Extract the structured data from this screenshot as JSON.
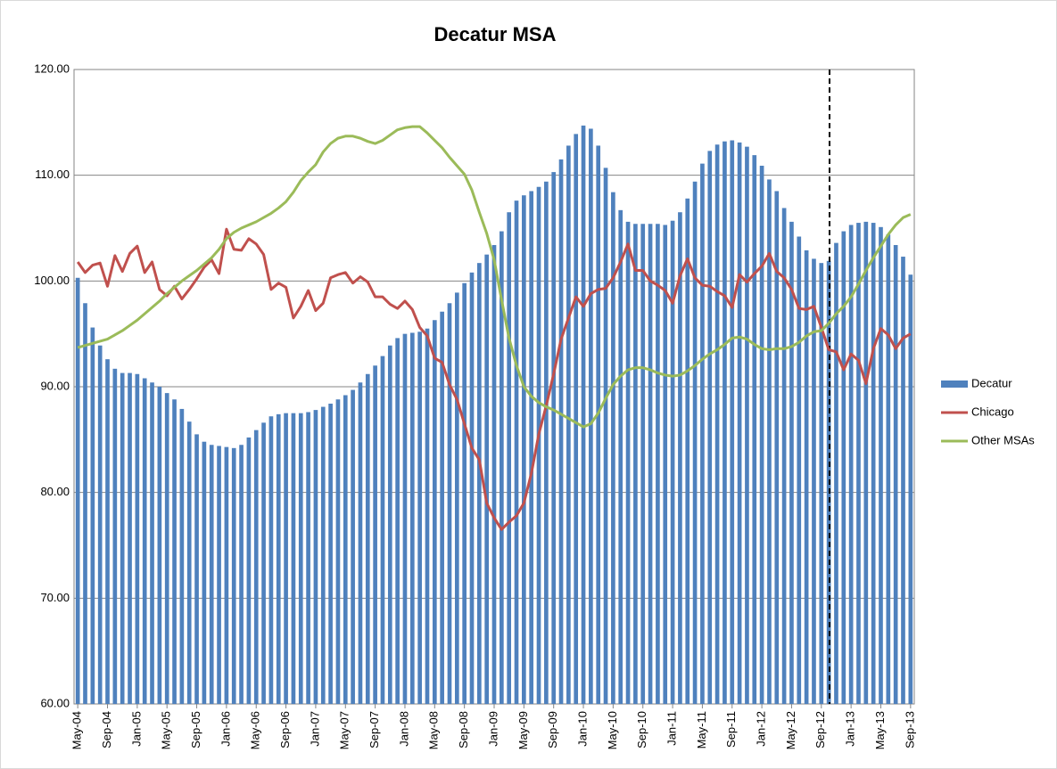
{
  "chart_data": {
    "type": "bar-line",
    "title": "Decatur MSA",
    "categories": [
      "May-04",
      null,
      null,
      null,
      "Sep-04",
      null,
      null,
      null,
      "Jan-05",
      null,
      null,
      null,
      "May-05",
      null,
      null,
      null,
      "Sep-05",
      null,
      null,
      null,
      "Jan-06",
      null,
      null,
      null,
      "May-06",
      null,
      null,
      null,
      "Sep-06",
      null,
      null,
      null,
      "Jan-07",
      null,
      null,
      null,
      "May-07",
      null,
      null,
      null,
      "Sep-07",
      null,
      null,
      null,
      "Jan-08",
      null,
      null,
      null,
      "May-08",
      null,
      null,
      null,
      "Sep-08",
      null,
      null,
      null,
      "Jan-09",
      null,
      null,
      null,
      "May-09",
      null,
      null,
      null,
      "Sep-09",
      null,
      null,
      null,
      "Jan-10",
      null,
      null,
      null,
      "May-10",
      null,
      null,
      null,
      "Sep-10",
      null,
      null,
      null,
      "Jan-11",
      null,
      null,
      null,
      "May-11",
      null,
      null,
      null,
      "Sep-11",
      null,
      null,
      null,
      "Jan-12",
      null,
      null,
      null,
      "May-12",
      null,
      null,
      null,
      "Sep-12",
      null,
      null,
      null,
      "Jan-13",
      null,
      null,
      null,
      "May-13",
      null,
      null,
      null,
      "Sep-13"
    ],
    "series": [
      {
        "name": "Decatur",
        "kind": "bar",
        "color": "#4f81bd",
        "values": [
          100.3,
          97.9,
          95.6,
          93.9,
          92.6,
          91.7,
          91.3,
          91.3,
          91.2,
          90.8,
          90.4,
          90.0,
          89.4,
          88.8,
          87.9,
          86.7,
          85.5,
          84.8,
          84.5,
          84.4,
          84.3,
          84.2,
          84.5,
          85.2,
          85.9,
          86.6,
          87.2,
          87.4,
          87.5,
          87.5,
          87.5,
          87.6,
          87.8,
          88.1,
          88.4,
          88.8,
          89.2,
          89.7,
          90.4,
          91.2,
          92.0,
          92.9,
          93.9,
          94.6,
          95.0,
          95.1,
          95.2,
          95.5,
          96.3,
          97.1,
          97.9,
          98.9,
          99.8,
          100.8,
          101.7,
          102.5,
          103.4,
          104.7,
          106.5,
          107.6,
          108.1,
          108.5,
          108.9,
          109.4,
          110.3,
          111.5,
          112.8,
          113.9,
          114.7,
          114.4,
          112.8,
          110.7,
          108.4,
          106.7,
          105.6,
          105.4,
          105.4,
          105.4,
          105.4,
          105.3,
          105.7,
          106.5,
          107.8,
          109.4,
          111.1,
          112.3,
          112.9,
          113.2,
          113.3,
          113.1,
          112.7,
          111.9,
          110.9,
          109.6,
          108.5,
          106.9,
          105.6,
          104.2,
          102.9,
          102.1,
          101.7,
          101.9,
          103.6,
          104.7,
          105.3,
          105.5,
          105.6,
          105.5,
          105.1,
          104.4,
          103.4,
          102.3,
          100.6
        ]
      },
      {
        "name": "Chicago",
        "kind": "line",
        "color": "#c0504d",
        "values": [
          101.8,
          100.8,
          101.5,
          101.7,
          99.5,
          102.4,
          100.9,
          102.6,
          103.3,
          100.8,
          101.8,
          99.2,
          98.6,
          99.5,
          98.3,
          99.2,
          100.2,
          101.3,
          102.0,
          100.7,
          104.9,
          103.0,
          102.9,
          104.0,
          103.5,
          102.5,
          99.2,
          99.8,
          99.4,
          96.5,
          97.6,
          99.1,
          97.2,
          97.9,
          100.3,
          100.6,
          100.8,
          99.8,
          100.4,
          99.9,
          98.5,
          98.5,
          97.8,
          97.4,
          98.1,
          97.3,
          95.6,
          94.8,
          92.7,
          92.3,
          90.2,
          88.8,
          86.5,
          84.2,
          83.1,
          79.0,
          77.6,
          76.5,
          77.2,
          77.8,
          79.0,
          81.8,
          85.5,
          88.2,
          91.2,
          94.5,
          96.5,
          98.5,
          97.6,
          98.8,
          99.2,
          99.3,
          100.3,
          101.8,
          103.5,
          101.0,
          101.0,
          100.0,
          99.6,
          99.1,
          97.9,
          100.5,
          102.1,
          100.3,
          99.6,
          99.5,
          99.0,
          98.6,
          97.5,
          100.6,
          99.9,
          100.7,
          101.4,
          102.6,
          100.9,
          100.3,
          99.2,
          97.4,
          97.3,
          97.6,
          95.6,
          93.5,
          93.3,
          91.6,
          93.1,
          92.5,
          90.3,
          93.6,
          95.5,
          94.9,
          93.6,
          94.6,
          95.0
        ]
      },
      {
        "name": "Other MSAs",
        "kind": "line",
        "color": "#9bbb59",
        "values": [
          93.7,
          93.9,
          94.1,
          94.3,
          94.5,
          94.9,
          95.3,
          95.8,
          96.3,
          96.9,
          97.5,
          98.1,
          98.8,
          99.4,
          100.0,
          100.5,
          101.0,
          101.6,
          102.2,
          103.0,
          104.0,
          104.6,
          105.0,
          105.3,
          105.6,
          106.0,
          106.4,
          106.9,
          107.5,
          108.4,
          109.5,
          110.3,
          111.0,
          112.2,
          113.0,
          113.5,
          113.7,
          113.7,
          113.5,
          113.2,
          113.0,
          113.3,
          113.8,
          114.3,
          114.5,
          114.6,
          114.6,
          114.0,
          113.3,
          112.6,
          111.7,
          110.9,
          110.1,
          108.6,
          106.5,
          104.5,
          102.0,
          98.2,
          94.6,
          92.0,
          90.0,
          89.1,
          88.5,
          88.1,
          87.8,
          87.4,
          87.0,
          86.6,
          86.2,
          86.5,
          87.5,
          88.9,
          90.2,
          91.0,
          91.6,
          91.8,
          91.8,
          91.6,
          91.3,
          91.1,
          91.0,
          91.1,
          91.5,
          92.0,
          92.6,
          93.1,
          93.5,
          94.0,
          94.6,
          94.7,
          94.5,
          94.0,
          93.6,
          93.5,
          93.6,
          93.6,
          93.8,
          94.2,
          94.8,
          95.2,
          95.3,
          96.0,
          96.9,
          97.6,
          98.5,
          99.7,
          101.0,
          102.2,
          103.3,
          104.4,
          105.3,
          106.0,
          106.3
        ]
      }
    ],
    "ylim": [
      60,
      120
    ],
    "yticks": [
      {
        "value": 60,
        "label": "60.00"
      },
      {
        "value": 70,
        "label": "70.00"
      },
      {
        "value": 80,
        "label": "80.00"
      },
      {
        "value": 90,
        "label": "90.00"
      },
      {
        "value": 100,
        "label": "100.00"
      },
      {
        "value": 110,
        "label": "110.00"
      },
      {
        "value": 120,
        "label": "120.00"
      }
    ],
    "grid": true,
    "legend": "right"
  }
}
